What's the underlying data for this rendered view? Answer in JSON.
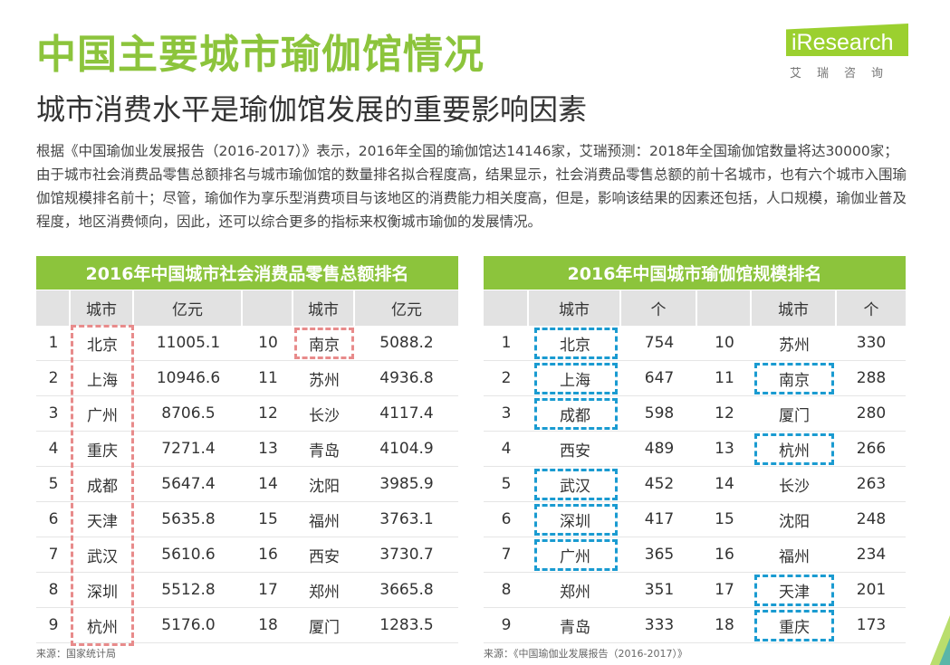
{
  "title": "中国主要城市瑜伽馆情况",
  "subtitle": "城市消费水平是瑜伽馆发展的重要影响因素",
  "logo": {
    "text": "iResearch",
    "cn": "艾瑞咨询"
  },
  "paragraph": "根据《中国瑜伽业发展报告（2016-2017）》表示，2016年全国的瑜伽馆达14146家，艾瑞预测：2018年全国瑜伽馆数量将达30000家；由于城市社会消费品零售总额排名与城市瑜伽馆的数量排名拟合程度高，结果显示，社会消费品零售总额的前十名城市，也有六个城市入围瑜伽馆规模排名前十；尽管，瑜伽作为享乐型消费项目与该地区的消费能力相关度高，但是，影响该结果的因素还包括，人口规模，瑜伽业普及程度，地区消费倾向，因此，还可以综合更多的指标来权衡城市瑜伽的发展情况。",
  "retail_table": {
    "title": "2016年中国城市社会消费品零售总额排名",
    "headers": [
      "",
      "城市",
      "亿元",
      "",
      "城市",
      "亿元"
    ],
    "rows": [
      [
        "1",
        "北京",
        "11005.1",
        "10",
        "南京",
        "5088.2"
      ],
      [
        "2",
        "上海",
        "10946.6",
        "11",
        "苏州",
        "4936.8"
      ],
      [
        "3",
        "广州",
        "8706.5",
        "12",
        "长沙",
        "4117.4"
      ],
      [
        "4",
        "重庆",
        "7271.4",
        "13",
        "青岛",
        "4104.9"
      ],
      [
        "5",
        "成都",
        "5647.4",
        "14",
        "沈阳",
        "3985.9"
      ],
      [
        "6",
        "天津",
        "5635.8",
        "15",
        "福州",
        "3763.1"
      ],
      [
        "7",
        "武汉",
        "5610.6",
        "16",
        "西安",
        "3730.7"
      ],
      [
        "8",
        "深圳",
        "5512.8",
        "17",
        "郑州",
        "3665.8"
      ],
      [
        "9",
        "杭州",
        "5176.0",
        "18",
        "厦门",
        "1283.5"
      ]
    ],
    "source": "来源：国家统计局"
  },
  "yoga_table": {
    "title": "2016年中国城市瑜伽馆规模排名",
    "headers": [
      "",
      "城市",
      "个",
      "",
      "城市",
      "个"
    ],
    "rows": [
      [
        "1",
        "北京",
        "754",
        "10",
        "苏州",
        "330"
      ],
      [
        "2",
        "上海",
        "647",
        "11",
        "南京",
        "288"
      ],
      [
        "3",
        "成都",
        "598",
        "12",
        "厦门",
        "280"
      ],
      [
        "4",
        "西安",
        "489",
        "13",
        "杭州",
        "266"
      ],
      [
        "5",
        "武汉",
        "452",
        "14",
        "长沙",
        "263"
      ],
      [
        "6",
        "深圳",
        "417",
        "15",
        "沈阳",
        "248"
      ],
      [
        "7",
        "广州",
        "365",
        "16",
        "福州",
        "234"
      ],
      [
        "8",
        "郑州",
        "351",
        "17",
        "天津",
        "201"
      ],
      [
        "9",
        "青岛",
        "333",
        "18",
        "重庆",
        "173"
      ]
    ],
    "source": "来源：《中国瑜伽业发展报告（2016-2017）》"
  },
  "colors": {
    "accent": "#8cc43c",
    "highlight_red": "#e88b8b",
    "highlight_blue": "#1a9bd1"
  }
}
